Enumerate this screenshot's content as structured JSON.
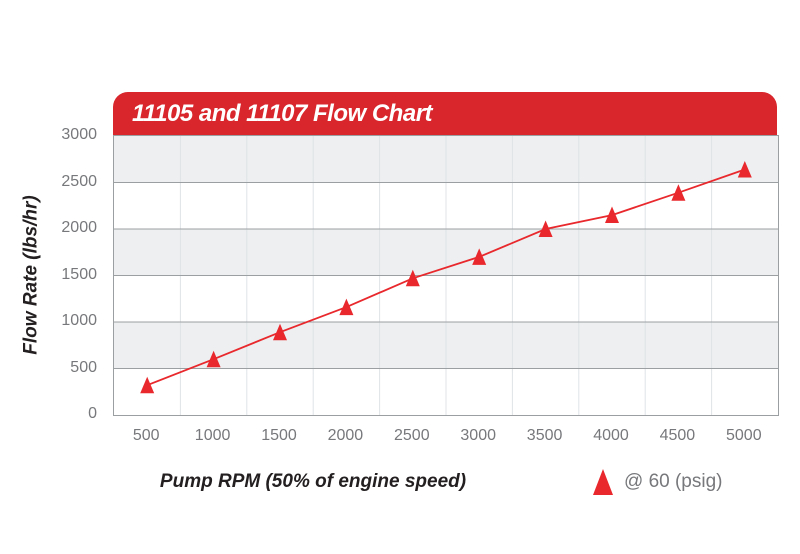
{
  "chart_data": {
    "type": "line",
    "title": "11105 and 11107 Flow Chart",
    "xlabel": "Pump RPM (50% of engine speed)",
    "ylabel": "Flow Rate (lbs/hr)",
    "x": [
      500,
      1000,
      1500,
      2000,
      2500,
      3000,
      3500,
      4000,
      4500,
      5000
    ],
    "x_tick_labels": [
      "500",
      "1000",
      "1500",
      "2000",
      "2500",
      "3000",
      "3500",
      "4000",
      "4500",
      "5000"
    ],
    "y_ticks": [
      0,
      500,
      1000,
      1500,
      2000,
      2500,
      3000
    ],
    "ylim": [
      0,
      3000
    ],
    "xlim_categories": 10,
    "series": [
      {
        "name": "@ 60 (psig)",
        "marker": "triangle-up",
        "values": [
          320,
          600,
          890,
          1160,
          1470,
          1700,
          2000,
          2150,
          2390,
          2640
        ]
      }
    ],
    "grid": "alternating horizontal bands every 500; vertical separators between categories",
    "legend_position": "bottom-right"
  },
  "colors": {
    "title_bar_red": "#d8262c",
    "series_red": "#e8282c",
    "band_gray": "#edeff0",
    "band_white": "#ffffff",
    "grid_horizontal": "#9c9fa1",
    "grid_vertical": "#dfe3e6",
    "tick_text": "#77787b",
    "axis_title_text": "#231f20",
    "title_text": "#ffffff"
  }
}
